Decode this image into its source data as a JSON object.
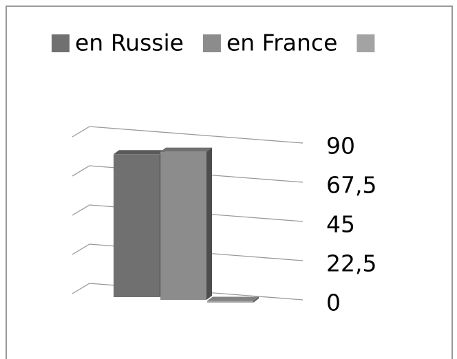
{
  "chart_data": {
    "type": "bar3d",
    "categories": [
      null
    ],
    "series": [
      {
        "name": "en Russie",
        "color": "#707070",
        "values": [
          82
        ]
      },
      {
        "name": "en France",
        "color": "#8c8c8c",
        "values": [
          85
        ]
      },
      {
        "name": null,
        "color": "#a3a3a3",
        "values": [
          1
        ]
      }
    ],
    "ylim": [
      0,
      90
    ],
    "yticks": [
      0,
      {
        "value": 22.5,
        "label": "22,5"
      },
      45,
      {
        "value": 67.5,
        "label": "67,5"
      },
      90
    ],
    "grid": true
  }
}
